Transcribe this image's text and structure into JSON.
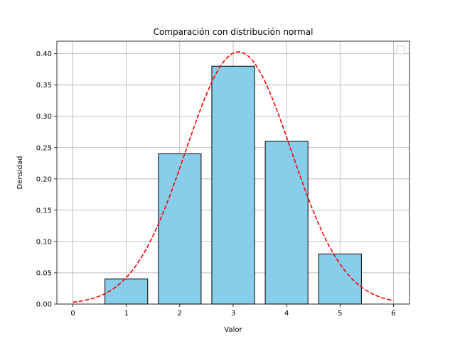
{
  "chart_data": {
    "type": "bar",
    "title": "Comparación con distribución normal",
    "xlabel": "Valor",
    "ylabel": "Densidad",
    "xlim": [
      -0.3,
      6.3
    ],
    "ylim": [
      0,
      0.42
    ],
    "grid": true,
    "legend": "top-right (empty)",
    "categories": [
      "1",
      "2",
      "3",
      "4",
      "5"
    ],
    "bar_x": [
      1,
      2,
      3,
      4,
      5
    ],
    "values": [
      0.04,
      0.24,
      0.38,
      0.26,
      0.08
    ],
    "bar_color": "#87ceeb",
    "bar_edge_color": "#000000",
    "x_ticks": [
      0,
      1,
      2,
      3,
      4,
      5,
      6
    ],
    "x_tick_labels": [
      "0",
      "1",
      "2",
      "3",
      "4",
      "5",
      "6"
    ],
    "y_ticks": [
      0,
      0.05,
      0.1,
      0.15,
      0.2,
      0.25,
      0.3,
      0.35,
      0.4
    ],
    "y_tick_labels": [
      "0.00",
      "0.05",
      "0.10",
      "0.15",
      "0.20",
      "0.25",
      "0.30",
      "0.35",
      "0.40"
    ],
    "curve": {
      "type": "normal",
      "mean": 3.1,
      "std": 0.99,
      "x_range": [
        0,
        6
      ],
      "color": "#ff0000",
      "style": "dashed"
    }
  }
}
